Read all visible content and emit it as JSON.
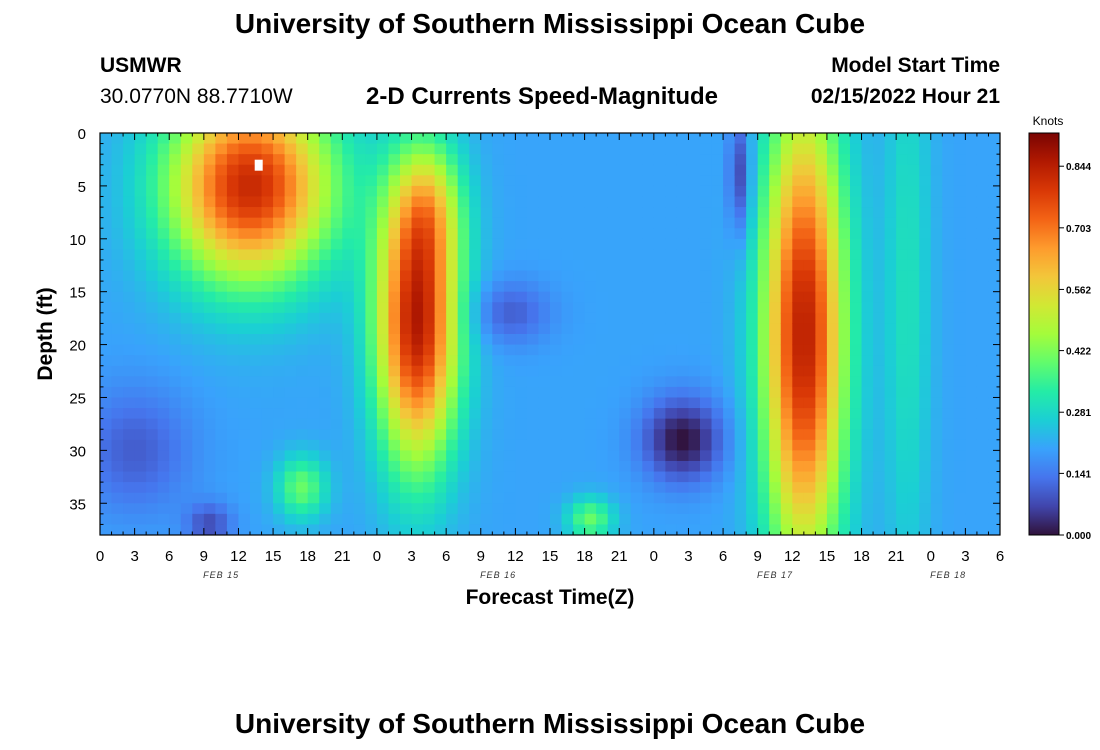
{
  "header": {
    "title": "University of Southern Mississippi Ocean Cube",
    "station": "USMWR",
    "coords": "30.0770N  88.7710W",
    "subtitle": "2-D Currents Speed-Magnitude",
    "model_start_label": "Model Start Time",
    "model_start_value": "02/15/2022 Hour 21"
  },
  "footer": {
    "title": "University of Southern Mississippi Ocean Cube"
  },
  "chart_data": {
    "type": "heatmap",
    "title": "2-D Currents Speed-Magnitude",
    "xlabel": "Forecast Time(Z)",
    "ylabel": "Depth (ft)",
    "x_ticks": [
      "0",
      "3",
      "6",
      "9",
      "12",
      "15",
      "18",
      "21",
      "0",
      "3",
      "6",
      "9",
      "12",
      "15",
      "18",
      "21",
      "0",
      "3",
      "6",
      "9",
      "12",
      "15",
      "18",
      "21",
      "0",
      "3",
      "6"
    ],
    "day_labels": [
      {
        "label": "FEB 15",
        "tick_index": 3.5
      },
      {
        "label": "FEB 16",
        "tick_index": 11.5
      },
      {
        "label": "FEB 17",
        "tick_index": 19.5
      },
      {
        "label": "FEB 18",
        "tick_index": 24.5
      }
    ],
    "x_range_hours": [
      0,
      78
    ],
    "y_ticks": [
      "0",
      "5",
      "10",
      "15",
      "20",
      "25",
      "30",
      "35"
    ],
    "y_range_ft": [
      0,
      38
    ],
    "colorbar": {
      "title": "Knots",
      "labels": [
        "0.844",
        "0.703",
        "0.562",
        "0.422",
        "0.281",
        "0.141",
        "0.000"
      ],
      "range": [
        0.0,
        0.92
      ],
      "colors": [
        "#30123b",
        "#4145ab",
        "#4675ed",
        "#39a2fc",
        "#1bcfd4",
        "#24eca6",
        "#61fc6c",
        "#a4fc3b",
        "#d1e834",
        "#f3c63a",
        "#fe9b2d",
        "#f36315",
        "#d93806",
        "#b11901",
        "#7a0403"
      ]
    },
    "blobs": [
      {
        "h": 13,
        "d": 5,
        "sh": 7,
        "sd": 9,
        "a": 0.62
      },
      {
        "h": 3,
        "d": 30,
        "sh": 5,
        "sd": 6,
        "a": -0.1
      },
      {
        "h": 9.5,
        "d": 37,
        "sh": 2,
        "sd": 2,
        "a": -0.12
      },
      {
        "h": 17.5,
        "d": 33.5,
        "sh": 2.2,
        "sd": 3,
        "a": 0.2
      },
      {
        "h": 27.5,
        "d": 18,
        "sh": 3.5,
        "sd": 13,
        "a": 0.65
      },
      {
        "h": 28.5,
        "d": 7,
        "sh": 3,
        "sd": 6,
        "a": 0.2
      },
      {
        "h": 35.5,
        "d": 17,
        "sh": 3.5,
        "sd": 3,
        "a": -0.1
      },
      {
        "h": 50.5,
        "d": 29,
        "sh": 3.5,
        "sd": 4,
        "a": -0.2
      },
      {
        "h": 42.5,
        "d": 36.5,
        "sh": 2,
        "sd": 2,
        "a": 0.2
      },
      {
        "h": 55.5,
        "d": 4,
        "sh": 1,
        "sd": 6,
        "a": -0.15
      },
      {
        "h": 61,
        "d": 19,
        "sh": 3.5,
        "sd": 22,
        "a": 0.64
      },
      {
        "h": 70,
        "d": 15,
        "sh": 2,
        "sd": 30,
        "a": 0.1
      }
    ],
    "base_value": 0.2,
    "value_max": 0.92,
    "marker": {
      "h": 13.75,
      "d": 3
    }
  }
}
